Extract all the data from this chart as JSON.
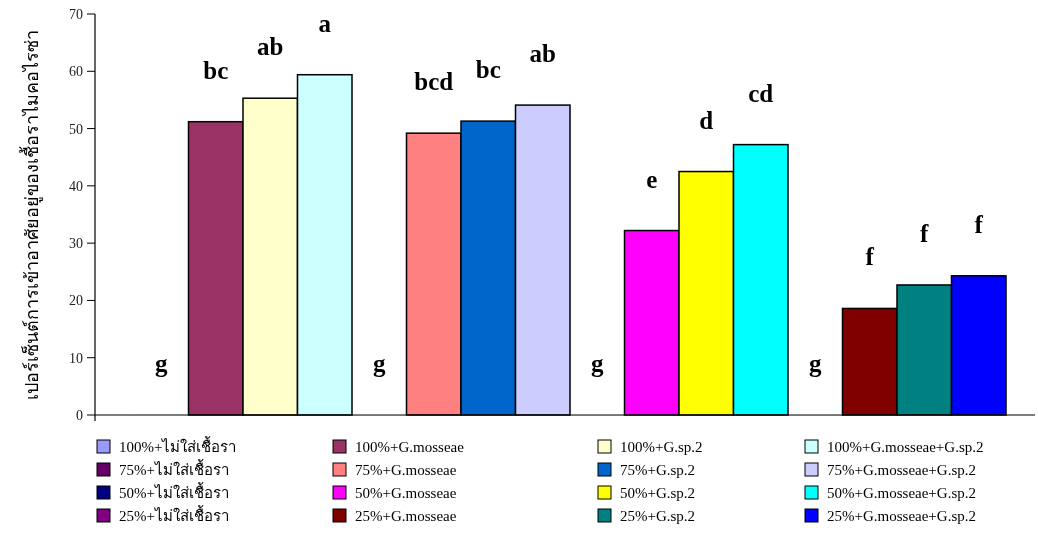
{
  "chart_data": {
    "type": "bar",
    "ylabel": "เปอร์เซ็นต์การเข้าอาศัยอยู่ของเชื้อราไมคอไรซ่า",
    "categories": [
      null,
      null,
      null,
      null
    ],
    "ylim": [
      0,
      70
    ],
    "yticks": [
      0,
      10,
      20,
      30,
      40,
      50,
      60,
      70
    ],
    "grid": false,
    "legend": "bottom",
    "series": [
      {
        "name": "100%+ไม่ใส่เชื้อรา",
        "color": "#9999ff",
        "values": [
          0,
          null,
          null,
          null
        ],
        "value_labels": [
          "g",
          null,
          null,
          null
        ]
      },
      {
        "name": "100%+G.mosseae",
        "color": "#993366",
        "values": [
          51.2,
          null,
          null,
          null
        ],
        "value_labels": [
          "bc",
          null,
          null,
          null
        ]
      },
      {
        "name": "100%+G.sp.2",
        "color": "#ffffcc",
        "values": [
          55.3,
          null,
          null,
          null
        ],
        "value_labels": [
          "ab",
          null,
          null,
          null
        ]
      },
      {
        "name": "100%+G.mosseae+G.sp.2",
        "color": "#ccffff",
        "values": [
          59.4,
          null,
          null,
          null
        ],
        "value_labels": [
          "a",
          null,
          null,
          null
        ]
      },
      {
        "name": "75%+ไม่ใส่เชื้อรา",
        "color": "#660066",
        "values": [
          null,
          0,
          null,
          null
        ],
        "value_labels": [
          null,
          "g",
          null,
          null
        ]
      },
      {
        "name": "75%+G.mosseae",
        "color": "#ff8080",
        "values": [
          null,
          49.2,
          null,
          null
        ],
        "value_labels": [
          null,
          "bcd",
          null,
          null
        ]
      },
      {
        "name": "75%+G.sp.2",
        "color": "#0066cc",
        "values": [
          null,
          51.3,
          null,
          null
        ],
        "value_labels": [
          null,
          "bc",
          null,
          null
        ]
      },
      {
        "name": "75%+G.mosseae+G.sp.2",
        "color": "#ccccff",
        "values": [
          null,
          54.1,
          null,
          null
        ],
        "value_labels": [
          null,
          "ab",
          null,
          null
        ]
      },
      {
        "name": "50%+ไม่ใส่เชื้อรา",
        "color": "#000080",
        "values": [
          null,
          null,
          0,
          null
        ],
        "value_labels": [
          null,
          null,
          "g",
          null
        ]
      },
      {
        "name": "50%+G.mosseae",
        "color": "#ff00ff",
        "values": [
          null,
          null,
          32.2,
          null
        ],
        "value_labels": [
          null,
          null,
          "e",
          null
        ]
      },
      {
        "name": "50%+G.sp.2",
        "color": "#ffff00",
        "values": [
          null,
          null,
          42.5,
          null
        ],
        "value_labels": [
          null,
          null,
          "d",
          null
        ]
      },
      {
        "name": "50%+G.mosseae+G.sp.2",
        "color": "#00ffff",
        "values": [
          null,
          null,
          47.2,
          null
        ],
        "value_labels": [
          null,
          null,
          "cd",
          null
        ]
      },
      {
        "name": "25%+ไม่ใส่เชื้อรา",
        "color": "#800080",
        "values": [
          null,
          null,
          null,
          0
        ],
        "value_labels": [
          null,
          null,
          null,
          "g"
        ]
      },
      {
        "name": "25%+G.mosseae",
        "color": "#800000",
        "values": [
          null,
          null,
          null,
          18.6
        ],
        "value_labels": [
          null,
          null,
          null,
          "f"
        ]
      },
      {
        "name": "25%+G.sp.2",
        "color": "#008080",
        "values": [
          null,
          null,
          null,
          22.7
        ],
        "value_labels": [
          null,
          null,
          null,
          "f"
        ]
      },
      {
        "name": "25%+G.mosseae+G.sp.2",
        "color": "#0000ff",
        "values": [
          null,
          null,
          null,
          24.3
        ],
        "value_labels": [
          null,
          null,
          null,
          "f"
        ]
      }
    ]
  }
}
